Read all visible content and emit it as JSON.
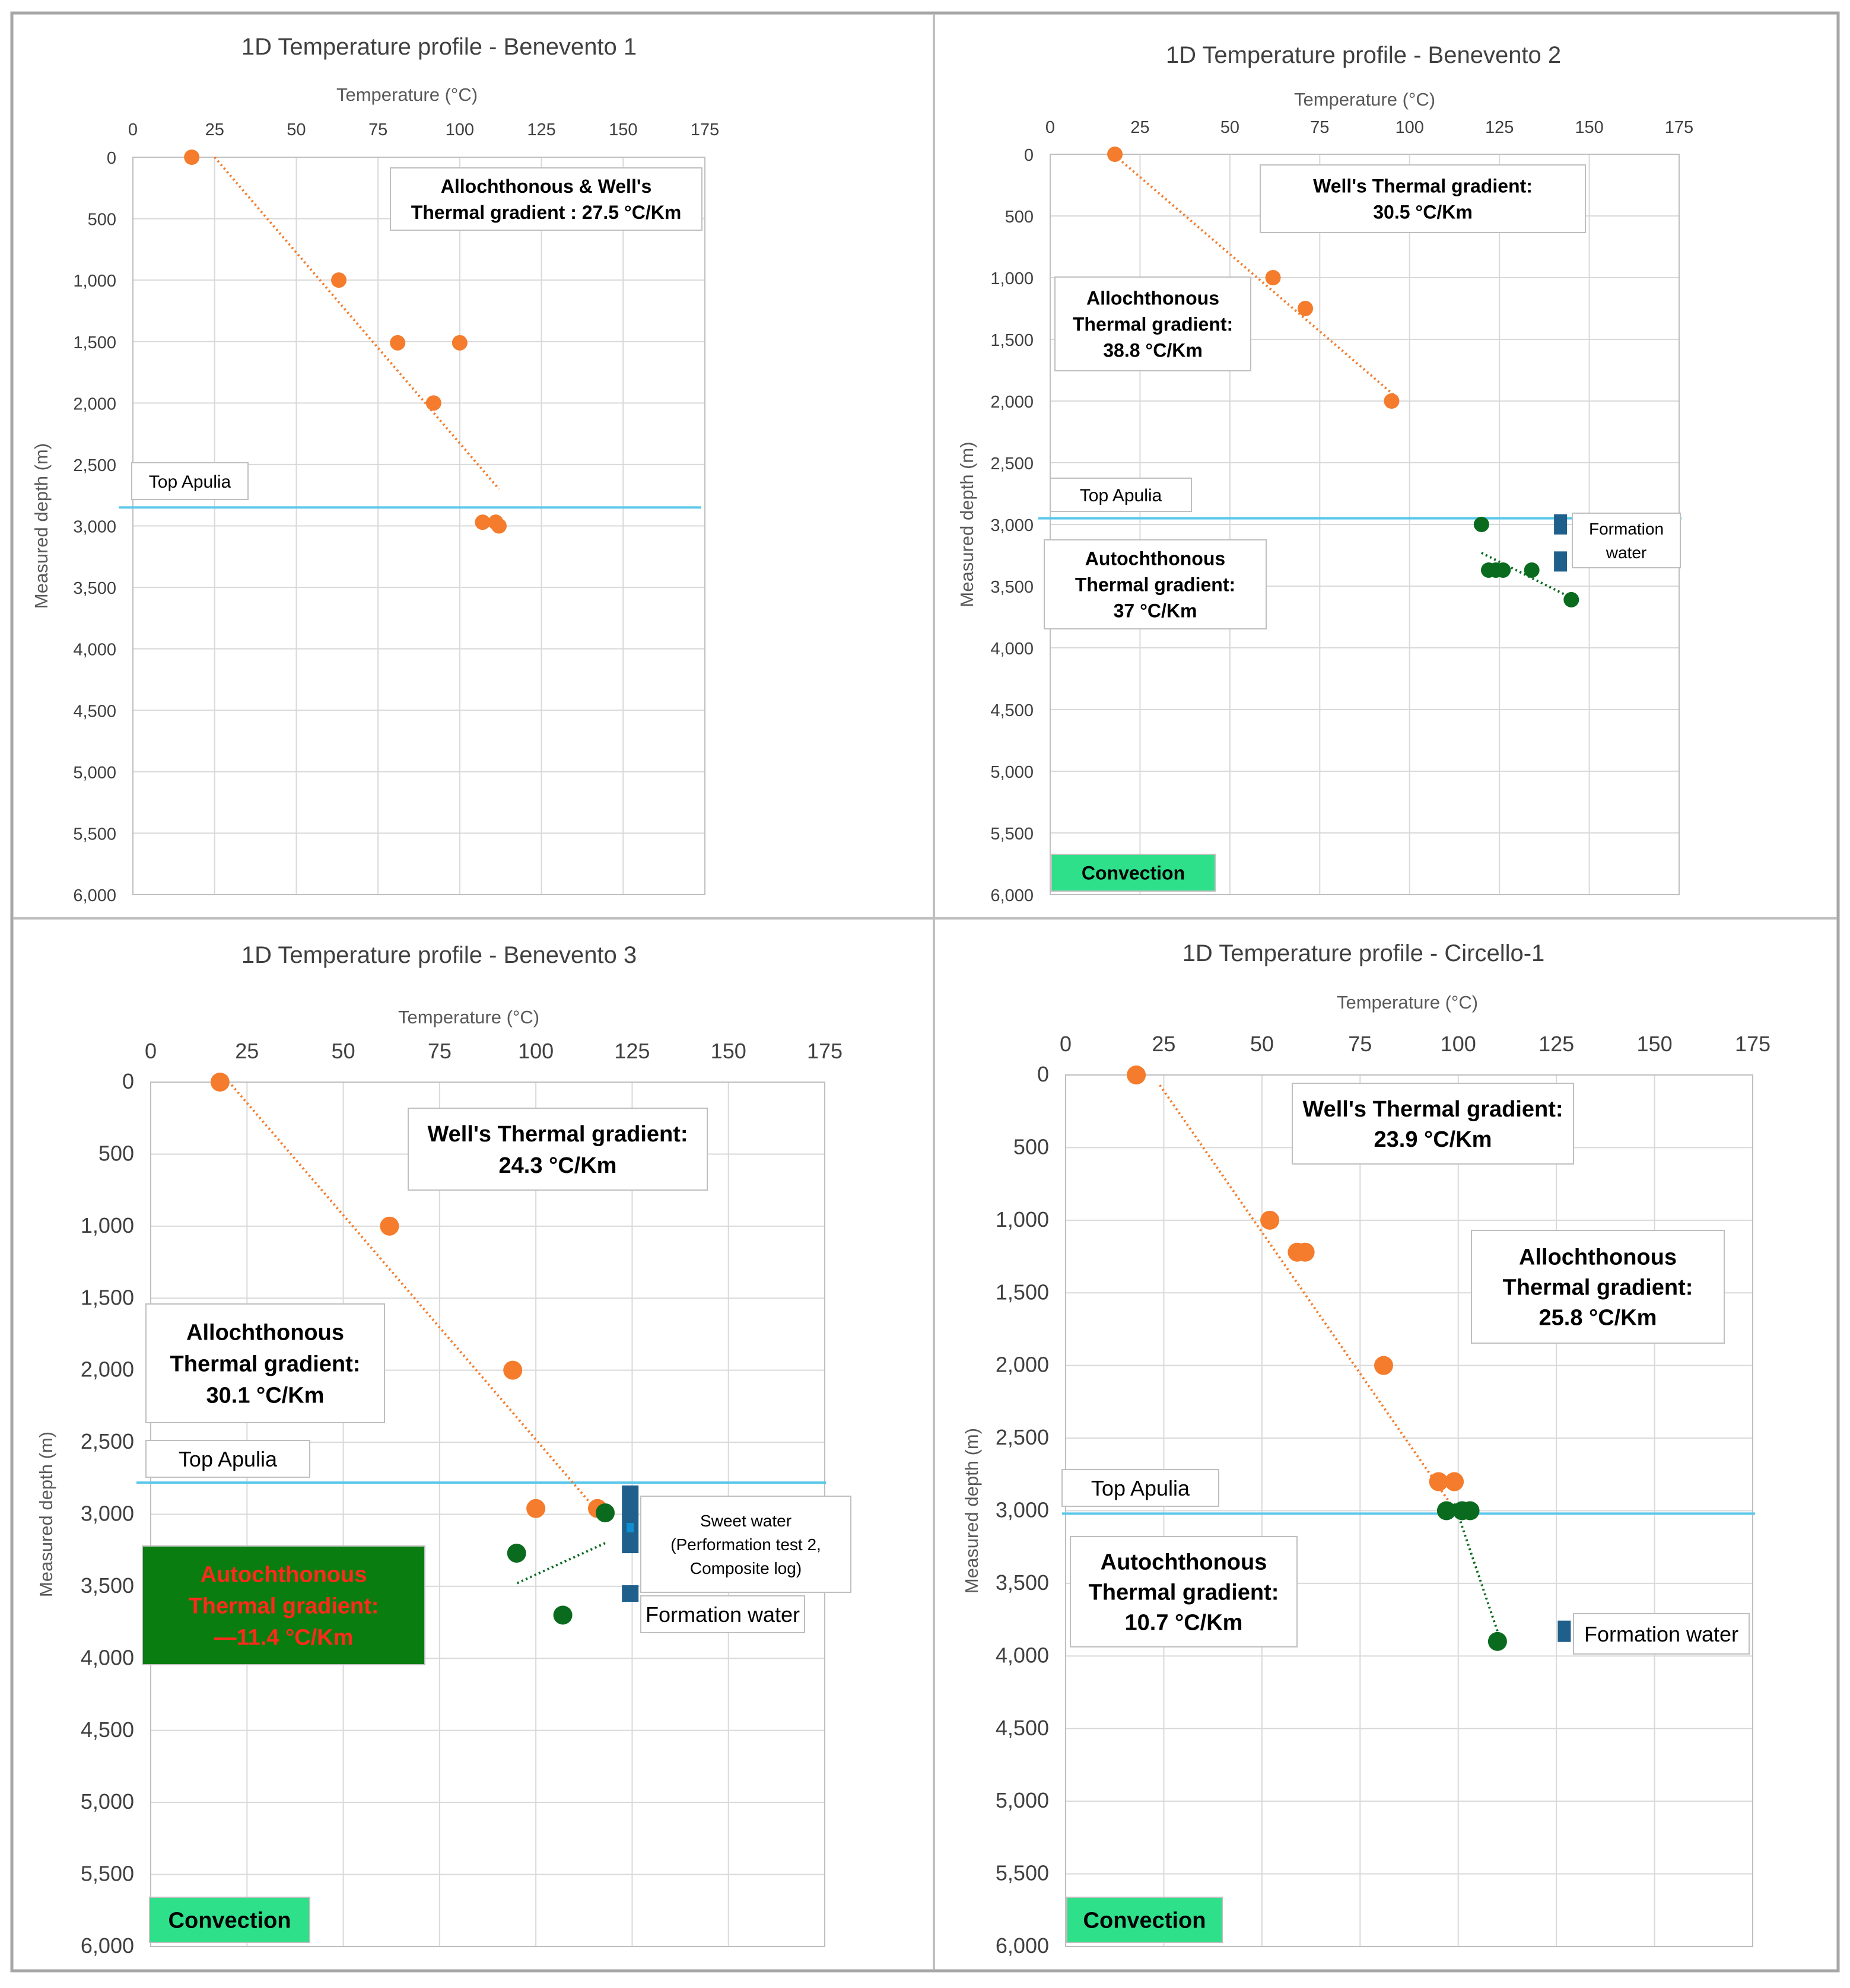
{
  "colors": {
    "allochthonous": "#f47c2c",
    "autochthonous": "#0a6b1f",
    "top_apulia_line": "#5bc8ea",
    "formation_water": "#1f5f8b",
    "sweet_water": "#0f8fd0",
    "convection_fill": "#2ee08a",
    "autochthonous_box_fill": "#0a7d10",
    "alert_text": "#ff2a1a"
  },
  "x_axis_title": "Temperature (°C)",
  "y_axis_title": "Measured depth (m)",
  "x_ticks": [
    "0",
    "25",
    "50",
    "75",
    "100",
    "125",
    "150",
    "175"
  ],
  "y_ticks": [
    "0",
    "500",
    "1,000",
    "1,500",
    "2,000",
    "2,500",
    "3,000",
    "3,500",
    "4,000",
    "4,500",
    "5,000",
    "5,500",
    "6,000"
  ],
  "chart_data": [
    {
      "type": "scatter",
      "title": "1D Temperature profile - Benevento 1",
      "xlabel": "Temperature (°C)",
      "ylabel": "Measured depth (m)",
      "xlim": [
        0,
        175
      ],
      "ylim": [
        0,
        6000
      ],
      "y_inverted": true,
      "top_apulia_depth": 2850,
      "series": [
        {
          "name": "Allochthonous",
          "points": [
            [
              18,
              0
            ],
            [
              63,
              1000
            ],
            [
              81,
              1510
            ],
            [
              100,
              1510
            ],
            [
              92,
              2000
            ],
            [
              107,
              2970
            ],
            [
              111,
              2970
            ],
            [
              112,
              3000
            ]
          ]
        }
      ],
      "trendlines": [
        {
          "series": "Allochthonous",
          "from": [
            25,
            0
          ],
          "to": [
            112,
            2700
          ]
        }
      ],
      "annotations": [
        {
          "kind": "gradient",
          "lines": [
            "Allochthonous & Well's",
            "Thermal gradient : 27.5 °C/Km"
          ]
        },
        {
          "kind": "top_apulia",
          "text": "Top Apulia"
        }
      ]
    },
    {
      "type": "scatter",
      "title": "1D Temperature profile - Benevento 2",
      "xlabel": "Temperature (°C)",
      "ylabel": "Measured depth (m)",
      "xlim": [
        0,
        175
      ],
      "ylim": [
        0,
        6000
      ],
      "y_inverted": true,
      "top_apulia_depth": 2950,
      "series": [
        {
          "name": "Allochthonous",
          "points": [
            [
              18,
              0
            ],
            [
              62,
              1000
            ],
            [
              71,
              1250
            ],
            [
              95,
              2000
            ]
          ]
        },
        {
          "name": "Autochthonous",
          "points": [
            [
              120,
              3000
            ],
            [
              122,
              3370
            ],
            [
              124,
              3370
            ],
            [
              126,
              3370
            ],
            [
              134,
              3370
            ],
            [
              145,
              3610
            ]
          ]
        }
      ],
      "trendlines": [
        {
          "series": "Allochthonous",
          "from": [
            20,
            60
          ],
          "to": [
            96,
            1960
          ]
        },
        {
          "series": "Autochthonous",
          "from": [
            120,
            3230
          ],
          "to": [
            144,
            3580
          ]
        }
      ],
      "formation_water_depths": [
        3000,
        3300
      ],
      "annotations": [
        {
          "kind": "gradient",
          "lines": [
            "Well's Thermal gradient:",
            "30.5 °C/Km"
          ]
        },
        {
          "kind": "gradient",
          "lines": [
            "Allochthonous",
            "Thermal gradient:",
            "38.8 °C/Km"
          ]
        },
        {
          "kind": "top_apulia",
          "text": "Top Apulia"
        },
        {
          "kind": "gradient",
          "lines": [
            "Autochthonous",
            "Thermal gradient:",
            "37 °C/Km"
          ]
        },
        {
          "kind": "formation_water",
          "lines": [
            "Formation",
            "water"
          ]
        },
        {
          "kind": "convection",
          "text": "Convection"
        }
      ]
    },
    {
      "type": "scatter",
      "title": "1D Temperature profile - Benevento 3",
      "xlabel": "Temperature (°C)",
      "ylabel": "Measured depth (m)",
      "xlim": [
        0,
        175
      ],
      "ylim": [
        0,
        6000
      ],
      "y_inverted": true,
      "top_apulia_depth": 2780,
      "series": [
        {
          "name": "Allochthonous",
          "points": [
            [
              18,
              0
            ],
            [
              62,
              1000
            ],
            [
              94,
              2000
            ],
            [
              100,
              2960
            ],
            [
              116,
              2960
            ]
          ]
        },
        {
          "name": "Autochthonous",
          "points": [
            [
              118,
              2990
            ],
            [
              95,
              3270
            ],
            [
              107,
              3700
            ]
          ]
        }
      ],
      "trendlines": [
        {
          "series": "Allochthonous",
          "from": [
            21,
            20
          ],
          "to": [
            116,
            2980
          ]
        },
        {
          "series": "Autochthonous",
          "from": [
            118,
            3200
          ],
          "to": [
            95,
            3480
          ]
        }
      ],
      "sweet_water_depth_range": [
        2800,
        3270
      ],
      "formation_water_depths": [
        3550
      ],
      "annotations": [
        {
          "kind": "gradient",
          "lines": [
            "Well's Thermal gradient:",
            "24.3 °C/Km"
          ]
        },
        {
          "kind": "gradient",
          "lines": [
            "Allochthonous",
            "Thermal gradient:",
            "30.1 °C/Km"
          ]
        },
        {
          "kind": "top_apulia",
          "text": "Top Apulia"
        },
        {
          "kind": "autochthonous_alert",
          "lines": [
            "Autochthonous",
            "Thermal gradient:",
            "—11.4 °C/Km"
          ]
        },
        {
          "kind": "sweet_water",
          "lines": [
            "Sweet water",
            "(Performation test 2,",
            "Composite log)"
          ]
        },
        {
          "kind": "formation_water",
          "lines": [
            "Formation water"
          ]
        },
        {
          "kind": "convection",
          "text": "Convection"
        }
      ]
    },
    {
      "type": "scatter",
      "title": "1D Temperature profile - Circello-1",
      "xlabel": "Temperature (°C)",
      "ylabel": "Measured depth (m)",
      "xlim": [
        0,
        175
      ],
      "ylim": [
        0,
        6000
      ],
      "y_inverted": true,
      "top_apulia_depth": 3020,
      "series": [
        {
          "name": "Allochthonous",
          "points": [
            [
              18,
              0
            ],
            [
              52,
              1000
            ],
            [
              59,
              1220
            ],
            [
              61,
              1220
            ],
            [
              81,
              2000
            ],
            [
              95,
              2800
            ],
            [
              99,
              2800
            ]
          ]
        },
        {
          "name": "Autochthonous",
          "points": [
            [
              97,
              3000
            ],
            [
              101,
              3000
            ],
            [
              103,
              3000
            ],
            [
              110,
              3900
            ]
          ]
        }
      ],
      "trendlines": [
        {
          "series": "Allochthonous",
          "from": [
            24,
            70
          ],
          "to": [
            98,
            2950
          ]
        },
        {
          "series": "Autochthonous",
          "from": [
            99,
            2950
          ],
          "to": [
            110,
            3830
          ]
        }
      ],
      "formation_water_depths": [
        3830
      ],
      "annotations": [
        {
          "kind": "gradient",
          "lines": [
            "Well's Thermal gradient:",
            "23.9 °C/Km"
          ]
        },
        {
          "kind": "gradient",
          "lines": [
            "Allochthonous",
            "Thermal gradient:",
            "25.8 °C/Km"
          ]
        },
        {
          "kind": "top_apulia",
          "text": "Top Apulia"
        },
        {
          "kind": "gradient",
          "lines": [
            "Autochthonous",
            "Thermal gradient:",
            "10.7 °C/Km"
          ]
        },
        {
          "kind": "formation_water",
          "lines": [
            "Formation water"
          ]
        },
        {
          "kind": "convection",
          "text": "Convection"
        }
      ]
    }
  ]
}
